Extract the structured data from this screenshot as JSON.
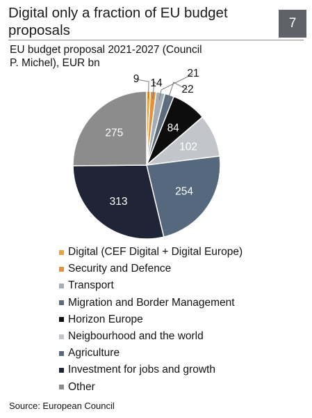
{
  "header": {
    "title": "Digital only a fraction of EU budget proposals",
    "page_number": "7"
  },
  "footer": {
    "source": "Source: European Council"
  },
  "chart_data": {
    "type": "pie",
    "title": "EU budget proposal 2021-2027 (Council P. Michel), EUR bn",
    "start_angle_deg": 0,
    "direction": "clockwise",
    "slices": [
      {
        "label": "Digital (CEF Digital + Digital Europe)",
        "value": 9,
        "value_label": "9",
        "color": "#e8a33c",
        "label_text_color": "#111111"
      },
      {
        "label": "Security and Defence",
        "value": 14,
        "value_label": "14",
        "color": "#e69137",
        "label_text_color": "#111111"
      },
      {
        "label": "Transport",
        "value": 21,
        "value_label": "21",
        "color": "#a4acb6",
        "label_text_color": "#111111"
      },
      {
        "label": "Migration and Border Management",
        "value": 22,
        "value_label": "22",
        "color": "#5c6b7d",
        "label_text_color": "#111111"
      },
      {
        "label": "Horizon Europe",
        "value": 84,
        "value_label": "84",
        "color": "#0d0d0d",
        "label_text_color": "#ffffff"
      },
      {
        "label": "Neigbourhood and the world",
        "value": 102,
        "value_label": "102",
        "color": "#c2c6ca",
        "label_text_color": "#ffffff"
      },
      {
        "label": "Agriculture",
        "value": 254,
        "value_label": "254",
        "color": "#56687d",
        "label_text_color": "#ffffff"
      },
      {
        "label": "Investment for jobs and growth",
        "value": 313,
        "value_label": "313",
        "color": "#1f2536",
        "label_text_color": "#ffffff"
      },
      {
        "label": "Other",
        "value": 275,
        "value_label": "275",
        "color": "#8c8c8c",
        "label_text_color": "#ffffff"
      }
    ]
  }
}
